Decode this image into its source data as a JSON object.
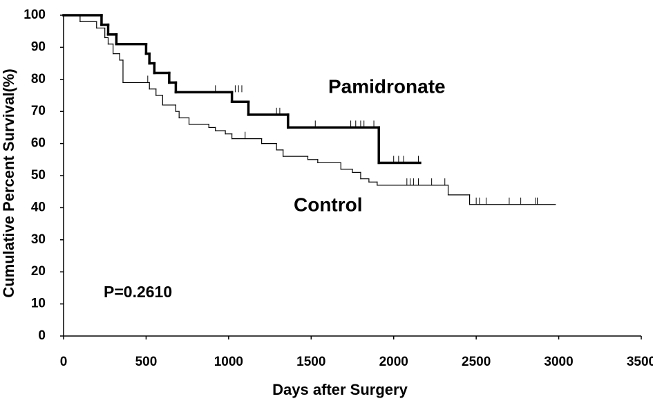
{
  "chart_data": {
    "type": "step",
    "x_label": "Days after Surgery",
    "y_label": "Cumulative Percent Survival(%)",
    "annotations": [
      "Pamidronate",
      "Control",
      "P=0.2610"
    ],
    "xlim": [
      0,
      3500
    ],
    "ylim": [
      0,
      100
    ],
    "xticks": [
      0,
      500,
      1000,
      1500,
      2000,
      2500,
      3000,
      3500
    ],
    "yticks": [
      0,
      10,
      20,
      30,
      40,
      50,
      60,
      70,
      80,
      90,
      100
    ],
    "series": [
      {
        "name": "Pamidronate",
        "color": "#000000",
        "width": 3.5,
        "x": [
          0,
          230,
          270,
          320,
          500,
          520,
          550,
          640,
          680,
          1020,
          1120,
          1360,
          1910,
          2160
        ],
        "values": [
          100,
          97,
          94,
          91,
          88,
          85,
          82,
          79,
          76,
          73,
          69,
          65,
          54,
          54
        ],
        "censor_x": [
          920,
          1040,
          1060,
          1080,
          1290,
          1310,
          1525,
          1740,
          1770,
          1800,
          1820,
          1880,
          2000,
          2030,
          2060,
          2150
        ],
        "censor_values": [
          76,
          76,
          76,
          76,
          69,
          69,
          65,
          65,
          65,
          65,
          65,
          65,
          54,
          54,
          54,
          54
        ]
      },
      {
        "name": "Control",
        "color": "#000000",
        "width": 1.2,
        "x": [
          0,
          100,
          200,
          250,
          270,
          300,
          340,
          360,
          520,
          560,
          600,
          680,
          700,
          760,
          880,
          920,
          980,
          1020,
          1200,
          1290,
          1330,
          1480,
          1540,
          1680,
          1750,
          1800,
          1850,
          1900,
          2330,
          2460,
          2980
        ],
        "values": [
          100,
          98,
          96,
          93,
          91,
          88,
          86,
          79,
          77,
          75,
          72,
          70,
          68,
          66,
          65,
          64,
          63,
          61.5,
          60,
          58,
          56,
          55,
          54,
          52,
          51,
          49,
          48,
          47,
          44,
          41,
          41
        ],
        "censor_x": [
          510,
          1100,
          2080,
          2100,
          2120,
          2150,
          2230,
          2310,
          2500,
          2520,
          2560,
          2700,
          2770,
          2860,
          2870
        ],
        "censor_values": [
          79,
          61.5,
          47,
          47,
          47,
          47,
          47,
          47,
          41,
          41,
          41,
          41,
          41,
          41,
          41
        ]
      }
    ]
  }
}
